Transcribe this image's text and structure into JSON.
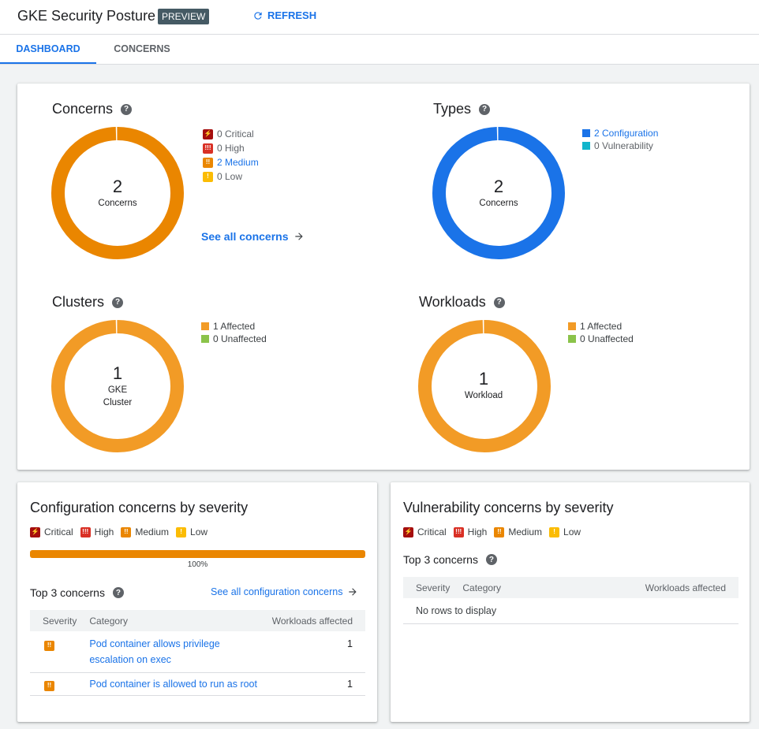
{
  "header": {
    "title": "GKE Security Posture",
    "badge": "PREVIEW",
    "refresh": "REFRESH"
  },
  "tabs": [
    {
      "label": "DASHBOARD",
      "active": true
    },
    {
      "label": "CONCERNS",
      "active": false
    }
  ],
  "colors": {
    "critical": "#a50e0e",
    "high": "#d93025",
    "medium": "#ea8600",
    "low": "#fbbc04",
    "configuration": "#1a73e8",
    "vulnerability": "#12b5cb",
    "affected": "#f29b26",
    "unaffected": "#8bc34a"
  },
  "concerns": {
    "title": "Concerns",
    "total": "2",
    "label": "Concerns",
    "legend": [
      {
        "label": "0 Critical",
        "value": 0
      },
      {
        "label": "0 High",
        "value": 0
      },
      {
        "label": "2 Medium",
        "value": 2
      },
      {
        "label": "0 Low",
        "value": 0
      }
    ],
    "see_all": "See all concerns"
  },
  "types": {
    "title": "Types",
    "total": "2",
    "label": "Concerns",
    "legend": [
      {
        "label": "2 Configuration",
        "value": 2
      },
      {
        "label": "0 Vulnerability",
        "value": 0
      }
    ]
  },
  "clusters": {
    "title": "Clusters",
    "total": "1",
    "label1": "GKE",
    "label2": "Cluster",
    "legend": [
      {
        "label": "1 Affected",
        "value": 1
      },
      {
        "label": "0 Unaffected",
        "value": 0
      }
    ]
  },
  "workloads": {
    "title": "Workloads",
    "total": "1",
    "label": "Workload",
    "legend": [
      {
        "label": "1 Affected",
        "value": 1
      },
      {
        "label": "0 Unaffected",
        "value": 0
      }
    ]
  },
  "severity_labels": {
    "critical": "Critical",
    "high": "High",
    "medium": "Medium",
    "low": "Low"
  },
  "config": {
    "title": "Configuration concerns by severity",
    "progress_percent": 100,
    "progress_label": "100%",
    "top_title": "Top 3 concerns",
    "see_all": "See all configuration concerns",
    "columns": [
      "Severity",
      "Category",
      "Workloads affected"
    ],
    "rows": [
      {
        "severity": "medium",
        "category_line1": "Pod container allows privilege",
        "category_line2": "escalation on exec",
        "workloads": "1"
      },
      {
        "severity": "medium",
        "category_line1": "Pod container is allowed to run as root",
        "category_line2": "",
        "workloads": "1"
      }
    ]
  },
  "vuln": {
    "title": "Vulnerability concerns by severity",
    "top_title": "Top 3 concerns",
    "columns": [
      "Severity",
      "Category",
      "Workloads affected"
    ],
    "empty": "No rows to display"
  }
}
